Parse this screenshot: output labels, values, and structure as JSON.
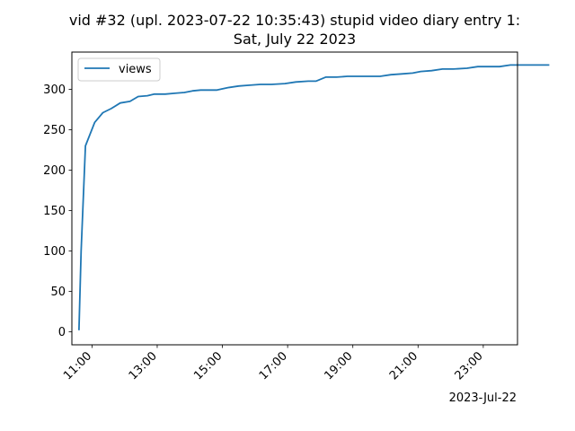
{
  "chart_data": {
    "type": "line",
    "title": "vid #32 (upl. 2023-07-22 10:35:43) stupid video diary entry 1:",
    "subtitle": "Sat, July 22 2023",
    "xlabel": "",
    "ylabel": "",
    "x_axis_type": "datetime",
    "x_offset_label": "2023-Jul-22",
    "xlim": [
      "10:23",
      "24:03"
    ],
    "ylim": [
      -16,
      346
    ],
    "xticks": [
      "11:00",
      "13:00",
      "15:00",
      "17:00",
      "19:00",
      "21:00",
      "23:00"
    ],
    "yticks": [
      0,
      50,
      100,
      150,
      200,
      250,
      300
    ],
    "grid": false,
    "legend_position": "upper left",
    "series": [
      {
        "name": "views",
        "color": "#1f77b4",
        "points": [
          [
            "10:36",
            3
          ],
          [
            "10:40",
            100
          ],
          [
            "10:48",
            230
          ],
          [
            "11:05",
            259
          ],
          [
            "11:20",
            271
          ],
          [
            "11:35",
            276
          ],
          [
            "11:52",
            283
          ],
          [
            "12:10",
            285
          ],
          [
            "12:25",
            291
          ],
          [
            "12:42",
            292
          ],
          [
            "12:55",
            294
          ],
          [
            "13:15",
            294
          ],
          [
            "13:32",
            295
          ],
          [
            "13:50",
            296
          ],
          [
            "14:05",
            298
          ],
          [
            "14:20",
            299
          ],
          [
            "14:35",
            299
          ],
          [
            "14:50",
            299
          ],
          [
            "15:10",
            302
          ],
          [
            "15:30",
            304
          ],
          [
            "15:50",
            305
          ],
          [
            "16:10",
            306
          ],
          [
            "16:30",
            306
          ],
          [
            "16:55",
            307
          ],
          [
            "17:15",
            309
          ],
          [
            "17:38",
            310
          ],
          [
            "17:52",
            310
          ],
          [
            "18:10",
            315
          ],
          [
            "18:30",
            315
          ],
          [
            "18:50",
            316
          ],
          [
            "19:10",
            316
          ],
          [
            "19:30",
            316
          ],
          [
            "19:50",
            316
          ],
          [
            "20:10",
            318
          ],
          [
            "20:30",
            319
          ],
          [
            "20:50",
            320
          ],
          [
            "21:05",
            322
          ],
          [
            "21:25",
            323
          ],
          [
            "21:45",
            325
          ],
          [
            "22:05",
            325
          ],
          [
            "22:30",
            326
          ],
          [
            "22:50",
            328
          ],
          [
            "23:10",
            328
          ],
          [
            "23:30",
            328
          ],
          [
            "23:50",
            330
          ],
          [
            "24:10",
            330
          ],
          [
            "24:30",
            330
          ],
          [
            "24:50",
            330
          ],
          [
            "25:00",
            330
          ]
        ]
      }
    ]
  }
}
